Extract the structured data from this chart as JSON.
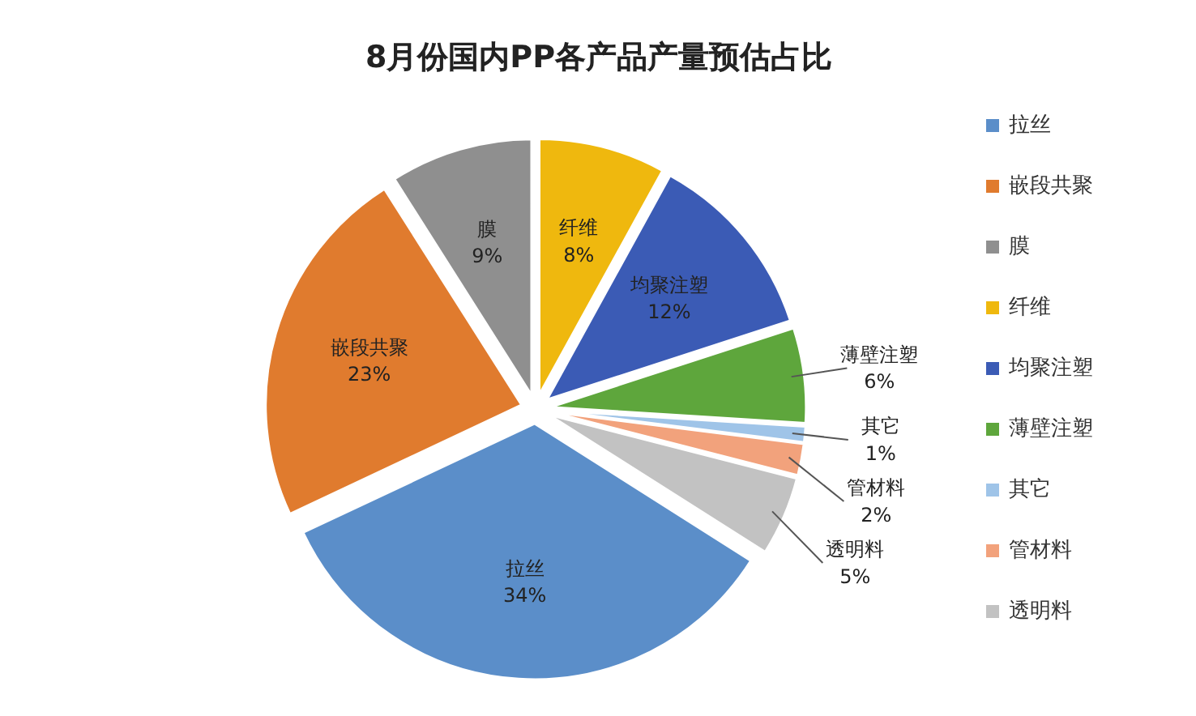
{
  "chart_data": {
    "type": "pie",
    "title": "8月份国内PP各产品产量预估占比",
    "categories": [
      "拉丝",
      "嵌段共聚",
      "膜",
      "纤维",
      "均聚注塑",
      "薄壁注塑",
      "其它",
      "管材料",
      "透明料"
    ],
    "values": [
      34,
      23,
      9,
      8,
      12,
      6,
      1,
      2,
      5
    ],
    "colors": [
      "#5b8ec9",
      "#e07b2e",
      "#8f8f8f",
      "#efb80e",
      "#3b5bb5",
      "#5ea63c",
      "#9fc4e8",
      "#f2a27c",
      "#c2c2c2"
    ],
    "value_labels": [
      "34%",
      "23%",
      "9%",
      "8%",
      "12%",
      "6%",
      "1%",
      "2%",
      "5%"
    ],
    "legend": "right"
  }
}
